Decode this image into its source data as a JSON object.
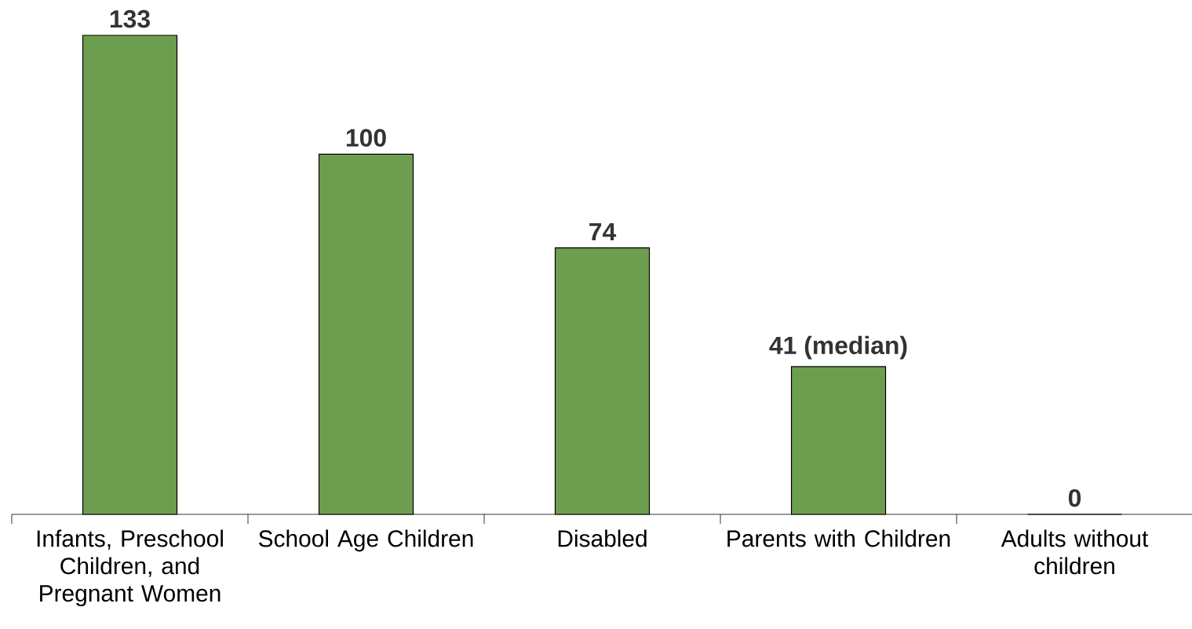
{
  "chart_data": {
    "type": "bar",
    "categories": [
      "Infants, Preschool Children, and Pregnant Women",
      "School Age Children",
      "Disabled",
      "Parents with Children",
      "Adults without children"
    ],
    "values": [
      133,
      100,
      74,
      41,
      0
    ],
    "value_labels": [
      "133",
      "100",
      "74",
      "41 (median)",
      "0"
    ],
    "color": "#6d9e4f"
  }
}
